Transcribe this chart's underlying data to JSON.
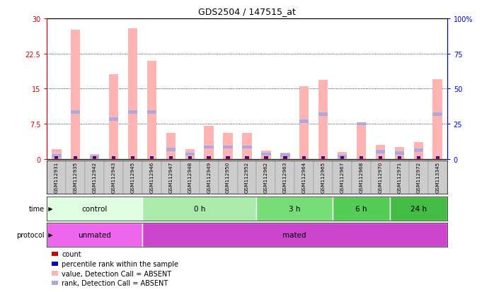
{
  "title": "GDS2504 / 147515_at",
  "samples": [
    "GSM112931",
    "GSM112935",
    "GSM112942",
    "GSM112943",
    "GSM112945",
    "GSM112946",
    "GSM112947",
    "GSM112948",
    "GSM112949",
    "GSM112950",
    "GSM112952",
    "GSM112962",
    "GSM112963",
    "GSM112964",
    "GSM112965",
    "GSM112967",
    "GSM112968",
    "GSM112970",
    "GSM112971",
    "GSM112972",
    "GSM113345"
  ],
  "values": [
    2.0,
    27.5,
    1.0,
    18.0,
    27.8,
    21.0,
    5.5,
    2.0,
    7.0,
    5.5,
    5.5,
    1.8,
    1.3,
    15.5,
    16.8,
    1.5,
    7.5,
    3.0,
    2.5,
    3.5,
    17.0
  ],
  "ranks": [
    0.6,
    10.0,
    0.4,
    8.5,
    10.0,
    10.0,
    2.0,
    1.0,
    2.5,
    2.5,
    2.5,
    1.0,
    0.8,
    8.0,
    9.5,
    0.5,
    7.5,
    1.5,
    1.2,
    1.8,
    9.5
  ],
  "ylim_left": [
    0,
    30
  ],
  "ylim_right": [
    0,
    100
  ],
  "yticks_left": [
    0,
    7.5,
    15.0,
    22.5,
    30
  ],
  "ytick_labels_left": [
    "0",
    "7.5",
    "15",
    "22.5",
    "30"
  ],
  "yticks_right": [
    0,
    25,
    50,
    75,
    100
  ],
  "ytick_labels_right": [
    "0",
    "25",
    "50",
    "75",
    "100%"
  ],
  "time_groups": [
    {
      "label": "control",
      "start": 0,
      "end": 5,
      "color": "#e0ffe0"
    },
    {
      "label": "0 h",
      "start": 5,
      "end": 11,
      "color": "#aaeaaa"
    },
    {
      "label": "3 h",
      "start": 11,
      "end": 15,
      "color": "#77dd77"
    },
    {
      "label": "6 h",
      "start": 15,
      "end": 18,
      "color": "#55cc55"
    },
    {
      "label": "24 h",
      "start": 18,
      "end": 21,
      "color": "#44bb44"
    }
  ],
  "protocol_groups": [
    {
      "label": "unmated",
      "start": 0,
      "end": 5,
      "color": "#ee66ee"
    },
    {
      "label": "mated",
      "start": 5,
      "end": 21,
      "color": "#cc44cc"
    }
  ],
  "value_color": "#ffb3b3",
  "rank_color": "#aaaadd",
  "count_color": "#cc0000",
  "percentile_color": "#0000cc",
  "left_axis_color": "#cc0000",
  "right_axis_color": "#0000cc",
  "sample_bg": "#cccccc"
}
